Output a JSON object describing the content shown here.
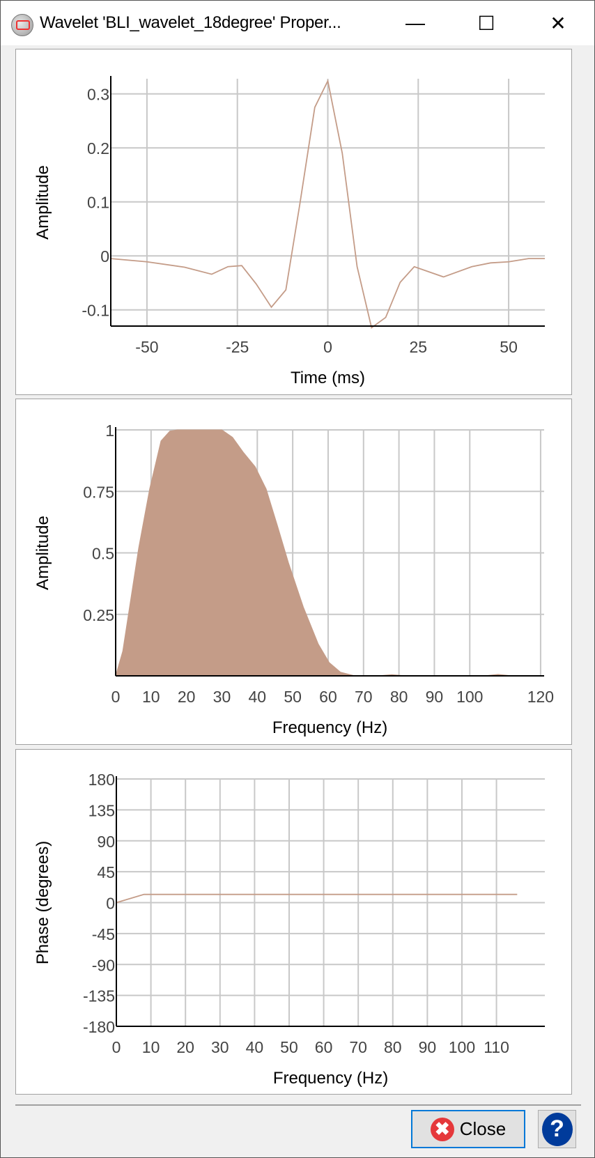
{
  "window": {
    "title": "Wavelet 'BLI_wavelet_18degree' Proper...",
    "minimize_glyph": "—",
    "maximize_glyph": "☐",
    "close_glyph": "✕"
  },
  "buttons": {
    "close_label": "Close",
    "close_icon": "✖",
    "help_icon": "?"
  },
  "colors": {
    "series": "#c49c88",
    "grid": "#c8c8c8",
    "fill": "#c49c88"
  },
  "chart_data": [
    {
      "type": "line",
      "xlabel": "Time (ms)",
      "ylabel": "Amplitude",
      "xlim": [
        -60,
        60
      ],
      "ylim": [
        -0.13,
        0.328
      ],
      "xticks": [
        -50,
        -25,
        0,
        25,
        50
      ],
      "xtick_labels": [
        "-50",
        "-25",
        "0",
        "25",
        "50"
      ],
      "yticks": [
        -0.1,
        0,
        0.1,
        0.2,
        0.3
      ],
      "ytick_labels": [
        "-0.1",
        "0",
        "0.1",
        "0.2",
        "0.3"
      ],
      "grid": true,
      "x": [
        -60,
        -50,
        -39.6,
        -32.1,
        -27.6,
        -23.8,
        -19.8,
        -15.6,
        -11.6,
        -7.8,
        -3.6,
        0,
        4,
        8.1,
        12.1,
        16,
        20,
        23.9,
        32,
        39.8,
        45,
        50,
        55.5,
        60
      ],
      "y": [
        -0.005,
        -0.011,
        -0.021,
        -0.034,
        -0.02,
        -0.018,
        -0.052,
        -0.095,
        -0.063,
        0.093,
        0.275,
        0.324,
        0.19,
        -0.02,
        -0.133,
        -0.114,
        -0.049,
        -0.02,
        -0.039,
        -0.02,
        -0.013,
        -0.011,
        -0.005,
        -0.005
      ]
    },
    {
      "type": "area",
      "xlabel": "Frequency (Hz)",
      "ylabel": "Amplitude",
      "xlim": [
        0,
        121
      ],
      "ylim": [
        0,
        1
      ],
      "xticks": [
        0,
        10,
        20,
        30,
        40,
        50,
        60,
        70,
        80,
        90,
        100,
        120
      ],
      "xtick_labels": [
        "0",
        "10",
        "20",
        "30",
        "40",
        "50",
        "60",
        "70",
        "80",
        "90",
        "100",
        "120"
      ],
      "yticks": [
        0.25,
        0.5,
        0.75,
        1
      ],
      "ytick_labels": [
        "0.25",
        "0.5",
        "0.75",
        "1"
      ],
      "grid": true,
      "x": [
        0,
        2,
        6.5,
        9.6,
        12.8,
        15.3,
        17.4,
        30,
        33,
        36,
        39.4,
        42.5,
        45.7,
        48.8,
        53,
        57.2,
        60.3,
        63.5,
        67.6,
        74,
        78,
        82,
        104,
        108,
        112,
        120
      ],
      "y": [
        0,
        0.1,
        0.52,
        0.76,
        0.955,
        0.995,
        1,
        1,
        0.97,
        0.91,
        0.85,
        0.76,
        0.61,
        0.46,
        0.28,
        0.13,
        0.054,
        0.015,
        0,
        0,
        0.005,
        0,
        0,
        0.006,
        0,
        0
      ]
    },
    {
      "type": "line",
      "xlabel": "Frequency (Hz)",
      "ylabel": "Phase (degrees)",
      "xlim": [
        0,
        124
      ],
      "ylim": [
        -180,
        180
      ],
      "xticks": [
        0,
        10,
        20,
        30,
        40,
        50,
        60,
        70,
        80,
        90,
        100,
        110
      ],
      "xtick_labels": [
        "0",
        "10",
        "20",
        "30",
        "40",
        "50",
        "60",
        "70",
        "80",
        "90",
        "100",
        "110"
      ],
      "yticks": [
        -180,
        -135,
        -90,
        -45,
        0,
        45,
        90,
        135,
        180
      ],
      "ytick_labels": [
        "-180",
        "-135",
        "-90",
        "-45",
        "0",
        "45",
        "90",
        "135",
        "180"
      ],
      "grid": true,
      "x": [
        0,
        8,
        116
      ],
      "y": [
        0,
        12,
        12
      ]
    }
  ]
}
